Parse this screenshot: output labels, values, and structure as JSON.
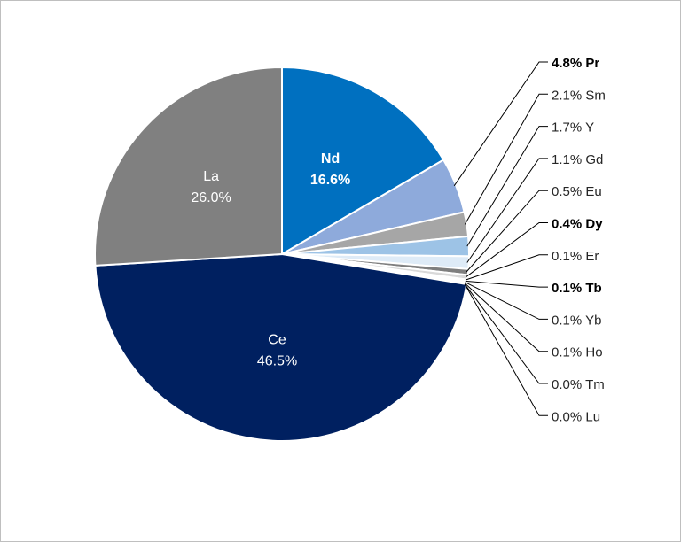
{
  "chart_data": {
    "type": "pie",
    "title": "",
    "start_angle_deg": 0,
    "direction": "clockwise",
    "slices": [
      {
        "name": "Nd",
        "value": 16.6,
        "label": "16.6%",
        "color": "#0070c0",
        "label_text_color": "#ffffff",
        "bold": true,
        "label_position": "inside"
      },
      {
        "name": "Pr",
        "value": 4.8,
        "label": "4.8%",
        "color": "#8eaadb",
        "bold": true,
        "label_position": "outside"
      },
      {
        "name": "Sm",
        "value": 2.1,
        "label": "2.1%",
        "color": "#a6a6a6",
        "bold": false,
        "label_position": "outside"
      },
      {
        "name": "Y",
        "value": 1.7,
        "label": "1.7%",
        "color": "#9dc3e6",
        "bold": false,
        "label_position": "outside"
      },
      {
        "name": "Gd",
        "value": 1.1,
        "label": "1.1%",
        "color": "#deebf7",
        "bold": false,
        "label_position": "outside"
      },
      {
        "name": "Eu",
        "value": 0.5,
        "label": "0.5%",
        "color": "#7f7f7f",
        "bold": false,
        "label_position": "outside"
      },
      {
        "name": "Dy",
        "value": 0.4,
        "label": "0.4%",
        "color": "#d9d9d9",
        "bold": true,
        "label_position": "outside"
      },
      {
        "name": "Er",
        "value": 0.1,
        "label": "0.1%",
        "color": "#2e75b6",
        "bold": false,
        "label_position": "outside"
      },
      {
        "name": "Tb",
        "value": 0.1,
        "label": "0.1%",
        "color": "#bdd7ee",
        "bold": true,
        "label_position": "outside"
      },
      {
        "name": "Yb",
        "value": 0.1,
        "label": "0.1%",
        "color": "#595959",
        "bold": false,
        "label_position": "outside"
      },
      {
        "name": "Ho",
        "value": 0.1,
        "label": "0.1%",
        "color": "#1f4e79",
        "bold": false,
        "label_position": "outside"
      },
      {
        "name": "Tm",
        "value": 0.0,
        "label": "0.0%",
        "color": "#c9c9c9",
        "bold": false,
        "label_position": "outside"
      },
      {
        "name": "Lu",
        "value": 0.0,
        "label": "0.0%",
        "color": "#b4c7e7",
        "bold": false,
        "label_position": "outside"
      },
      {
        "name": "Ce",
        "value": 46.5,
        "label": "46.5%",
        "color": "#002060",
        "label_text_color": "#ffffff",
        "bold": false,
        "label_position": "inside"
      },
      {
        "name": "La",
        "value": 26.0,
        "label": "26.0%",
        "color": "#808080",
        "label_text_color": "#ffffff",
        "bold": false,
        "label_position": "inside"
      }
    ]
  }
}
